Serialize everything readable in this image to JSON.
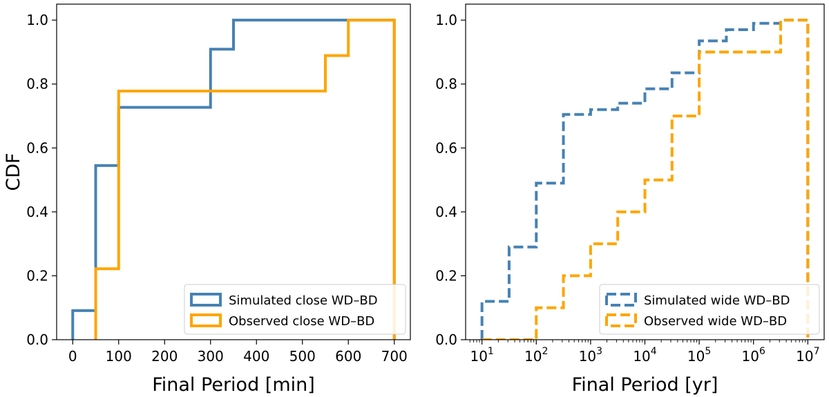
{
  "chart_data": [
    {
      "type": "line",
      "subtype": "step-cdf",
      "title": "",
      "xlabel": "Final Period [min]",
      "ylabel": "CDF",
      "xscale": "linear",
      "xlim": [
        -35,
        735
      ],
      "ylim": [
        0,
        1.05
      ],
      "xticks": [
        0,
        100,
        200,
        300,
        400,
        500,
        600,
        700
      ],
      "xtick_labels": [
        "0",
        "100",
        "200",
        "300",
        "400",
        "500",
        "600",
        "700"
      ],
      "yticks": [
        0.0,
        0.2,
        0.4,
        0.6,
        0.8,
        1.0
      ],
      "ytick_labels": [
        "0.0",
        "0.2",
        "0.4",
        "0.6",
        "0.8",
        "1.0"
      ],
      "grid": false,
      "legend": "lower-right",
      "series": [
        {
          "name": "Simulated close WD–BD",
          "color": "#4682b4",
          "linestyle": "solid",
          "x": [
            0,
            0,
            50,
            50,
            100,
            100,
            300,
            300,
            350,
            350,
            700,
            700
          ],
          "y": [
            0,
            0.091,
            0.091,
            0.545,
            0.545,
            0.727,
            0.727,
            0.909,
            0.909,
            1.0,
            1.0,
            0
          ]
        },
        {
          "name": "Observed close WD–BD",
          "color": "#ffa500",
          "linestyle": "solid",
          "x": [
            50,
            50,
            100,
            100,
            550,
            550,
            600,
            600,
            700,
            700
          ],
          "y": [
            0,
            0.222,
            0.222,
            0.778,
            0.778,
            0.889,
            0.889,
            1.0,
            1.0,
            0
          ]
        }
      ]
    },
    {
      "type": "line",
      "subtype": "step-cdf",
      "title": "",
      "xlabel": "Final Period [yr]",
      "ylabel": "",
      "xscale": "log",
      "xlim": [
        5,
        20000000
      ],
      "ylim": [
        0,
        1.05
      ],
      "xticks": [
        10,
        100,
        1000,
        10000,
        100000,
        1000000,
        10000000
      ],
      "xtick_labels": [
        {
          "base": "10",
          "exp": "1"
        },
        {
          "base": "10",
          "exp": "2"
        },
        {
          "base": "10",
          "exp": "3"
        },
        {
          "base": "10",
          "exp": "4"
        },
        {
          "base": "10",
          "exp": "5"
        },
        {
          "base": "10",
          "exp": "6"
        },
        {
          "base": "10",
          "exp": "7"
        }
      ],
      "yticks": [
        0.0,
        0.2,
        0.4,
        0.6,
        0.8,
        1.0
      ],
      "ytick_labels": [
        "0.0",
        "0.2",
        "0.4",
        "0.6",
        "0.8",
        "1.0"
      ],
      "grid": false,
      "legend": "lower-right",
      "series": [
        {
          "name": "Simulated wide WD–BD",
          "color": "#4682b4",
          "linestyle": "dashed",
          "x": [
            10,
            10,
            31.6,
            31.6,
            100,
            100,
            316,
            316,
            1000,
            1000,
            3160,
            3160,
            10000,
            10000,
            31600,
            31600,
            100000,
            100000,
            316000,
            316000,
            1000000,
            1000000,
            3160000,
            3160000,
            10000000,
            10000000
          ],
          "y": [
            0,
            0.12,
            0.12,
            0.29,
            0.29,
            0.49,
            0.49,
            0.705,
            0.705,
            0.72,
            0.72,
            0.74,
            0.74,
            0.785,
            0.785,
            0.835,
            0.835,
            0.935,
            0.935,
            0.97,
            0.97,
            0.99,
            0.99,
            1.0,
            1.0,
            0
          ]
        },
        {
          "name": "Observed wide WD–BD",
          "color": "#ffa500",
          "linestyle": "dashed",
          "x": [
            10,
            10,
            100,
            100,
            316,
            316,
            1000,
            1000,
            3160,
            3160,
            10000,
            10000,
            31600,
            31600,
            100000,
            100000,
            3160000,
            3160000,
            10000000,
            10000000
          ],
          "y": [
            0,
            0.0,
            0.0,
            0.1,
            0.1,
            0.2,
            0.2,
            0.3,
            0.3,
            0.4,
            0.4,
            0.5,
            0.5,
            0.7,
            0.7,
            0.9,
            0.9,
            1.0,
            1.0,
            0
          ]
        }
      ]
    }
  ]
}
